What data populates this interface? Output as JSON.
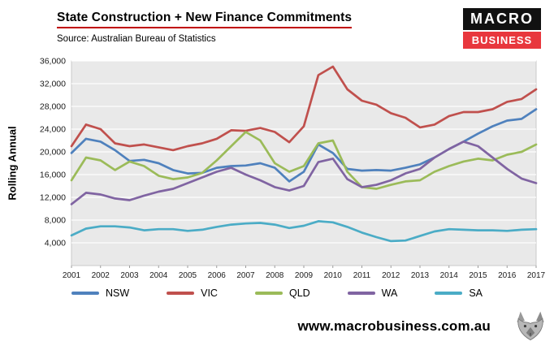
{
  "header": {
    "title": "State Construction + New Finance Commitments",
    "source": "Source: Australian Bureau of Statistics",
    "logo": {
      "top": "MACRO",
      "bottom": "BUSINESS",
      "top_bg": "#111111",
      "bottom_bg": "#e8373d"
    }
  },
  "chart_data": {
    "type": "line",
    "title": "State Construction + New Finance Commitments",
    "ylabel": "Rolling Annual",
    "ylim": [
      0,
      36000
    ],
    "ytick_step": 4000,
    "grid": true,
    "legend_position": "bottom",
    "plot_bg": "#e9e9e9",
    "grid_color": "#ffffff",
    "xticks": [
      2001,
      2002,
      2003,
      2004,
      2005,
      2006,
      2007,
      2008,
      2009,
      2010,
      2011,
      2012,
      2013,
      2014,
      2015,
      2016,
      2017
    ],
    "x": [
      2001,
      2001.5,
      2002,
      2002.5,
      2003,
      2003.5,
      2004,
      2004.5,
      2005,
      2005.5,
      2006,
      2006.5,
      2007,
      2007.5,
      2008,
      2008.5,
      2009,
      2009.5,
      2010,
      2010.5,
      2011,
      2011.5,
      2012,
      2012.5,
      2013,
      2013.5,
      2014,
      2014.5,
      2015,
      2015.5,
      2016,
      2016.5,
      2017
    ],
    "series": [
      {
        "name": "NSW",
        "color": "#4F81BD",
        "values": [
          19800,
          22300,
          21800,
          20300,
          18400,
          18600,
          18000,
          16800,
          16200,
          16300,
          17200,
          17500,
          17600,
          18000,
          17200,
          14800,
          16500,
          21300,
          19800,
          17000,
          16700,
          16800,
          16700,
          17200,
          17800,
          19000,
          20500,
          21800,
          23200,
          24500,
          25500,
          25800,
          27500
        ]
      },
      {
        "name": "VIC",
        "color": "#C0504D",
        "values": [
          21000,
          24800,
          24000,
          21500,
          21000,
          21300,
          20800,
          20300,
          21000,
          21500,
          22300,
          23800,
          23700,
          24200,
          23500,
          21700,
          24500,
          33500,
          35000,
          31000,
          29000,
          28300,
          26800,
          26000,
          24300,
          24800,
          26300,
          27000,
          27000,
          27500,
          28800,
          29300,
          31000
        ]
      },
      {
        "name": "QLD",
        "color": "#9BBB59",
        "values": [
          15000,
          19000,
          18500,
          16800,
          18300,
          17500,
          15800,
          15200,
          15500,
          16300,
          18500,
          21000,
          23500,
          22000,
          18000,
          16500,
          17500,
          21500,
          22000,
          16500,
          13800,
          13500,
          14200,
          14800,
          15000,
          16500,
          17500,
          18300,
          18800,
          18500,
          19500,
          20000,
          21300
        ]
      },
      {
        "name": "WA",
        "color": "#8064A2",
        "values": [
          10800,
          12800,
          12500,
          11800,
          11500,
          12300,
          13000,
          13500,
          14500,
          15500,
          16500,
          17200,
          16000,
          15000,
          13800,
          13200,
          14000,
          18200,
          18800,
          15200,
          13800,
          14200,
          15000,
          16200,
          17000,
          19000,
          20500,
          21800,
          21000,
          19000,
          17000,
          15300,
          14500
        ]
      },
      {
        "name": "SA",
        "color": "#4BACC6",
        "values": [
          5300,
          6500,
          6900,
          6900,
          6700,
          6200,
          6400,
          6400,
          6100,
          6300,
          6800,
          7200,
          7400,
          7500,
          7200,
          6600,
          7000,
          7800,
          7600,
          6800,
          5800,
          5000,
          4300,
          4400,
          5200,
          6000,
          6400,
          6300,
          6200,
          6200,
          6100,
          6300,
          6400
        ]
      }
    ]
  },
  "footer": {
    "website": "www.macrobusiness.com.au"
  }
}
